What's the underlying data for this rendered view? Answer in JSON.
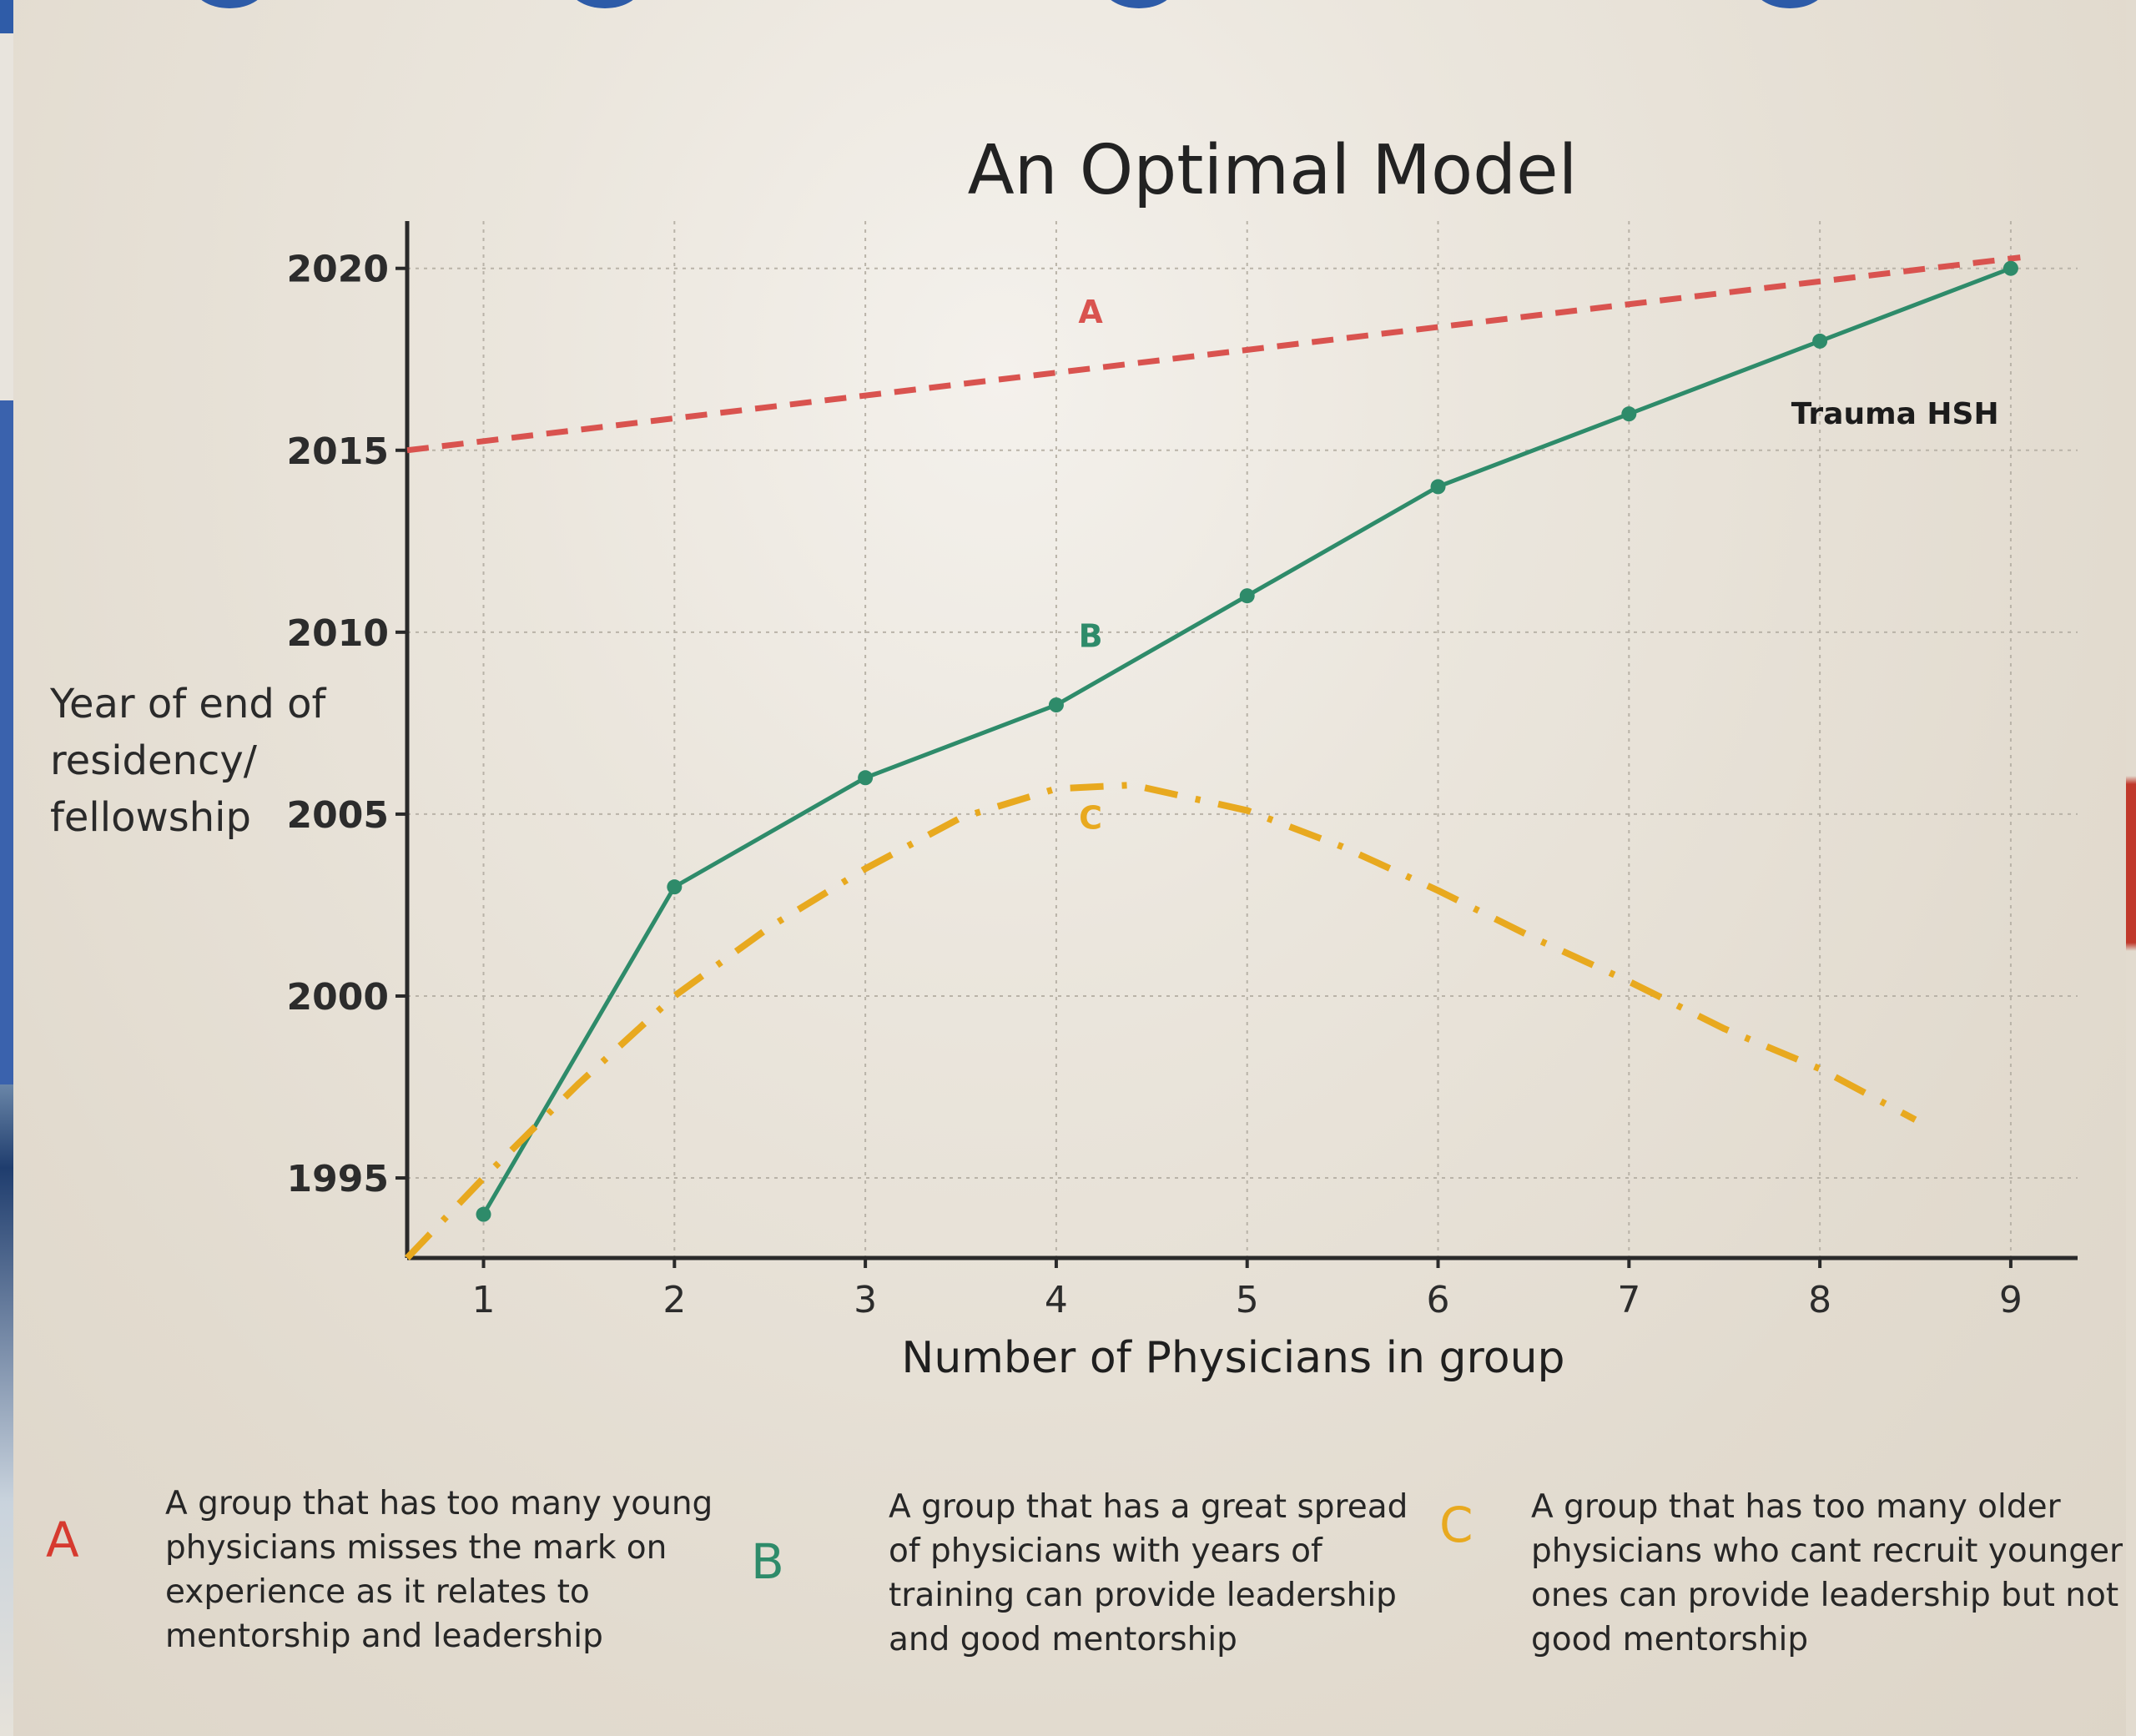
{
  "chart_data": {
    "type": "line",
    "title": "An Optimal Model",
    "xlabel": "Number of Physicians in group",
    "ylabel": [
      "Year of end of",
      "residency/",
      "fellowship"
    ],
    "x_ticks": [
      1,
      2,
      3,
      4,
      5,
      6,
      7,
      8,
      9
    ],
    "y_ticks": [
      1995,
      2000,
      2005,
      2010,
      2015,
      2020
    ],
    "xlim": [
      0.6,
      9.35
    ],
    "ylim": [
      1992.8,
      2021.3
    ],
    "grid": true,
    "series": [
      {
        "name": "A",
        "style": "dashed",
        "color": "#d9534f",
        "x": [
          0.6,
          9.05
        ],
        "y": [
          2015.0,
          2020.3
        ]
      },
      {
        "name": "B",
        "style": "solid-markers",
        "color": "#2e8b6a",
        "x": [
          1,
          2,
          3,
          4,
          5,
          6,
          7,
          8,
          9
        ],
        "y": [
          1994,
          2003,
          2006,
          2008,
          2011,
          2014,
          2016,
          2018,
          2020
        ]
      },
      {
        "name": "C",
        "style": "dash-dot",
        "color": "#e8a91f",
        "x": [
          0.6,
          1,
          1.5,
          2,
          2.5,
          3,
          3.5,
          4,
          4.4,
          5,
          5.5,
          6,
          6.5,
          7,
          7.5,
          8,
          8.5
        ],
        "y": [
          1992.8,
          1995.0,
          1997.6,
          2000.0,
          2001.9,
          2003.5,
          2004.9,
          2005.7,
          2005.8,
          2005.1,
          2004.1,
          2002.9,
          2001.6,
          2000.4,
          1999.1,
          1998.0,
          1996.6
        ]
      }
    ],
    "series_tags": [
      {
        "text": "A",
        "x": 4.18,
        "y": 2018.5
      },
      {
        "text": "B",
        "x": 4.18,
        "y": 2009.6
      },
      {
        "text": "C",
        "x": 4.18,
        "y": 2004.6
      }
    ],
    "annotation": {
      "text": "Trauma HSH",
      "x": 7.85,
      "y": 2016.0
    }
  },
  "legend": [
    {
      "letter": "A",
      "color": "#d63a2f",
      "lines": [
        "A group that has too many young",
        "physicians misses the mark on",
        "experience as it relates to",
        "mentorship and leadership"
      ]
    },
    {
      "letter": "B",
      "color": "#2e8b6a",
      "lines": [
        "A group that has a great spread",
        "of physicians with  years of",
        "training can provide leadership",
        "and good mentorship"
      ]
    },
    {
      "letter": "C",
      "color": "#e8a91f",
      "lines": [
        "A group that has too many older",
        "physicians who cant recruit younger",
        "ones can provide leadership but not",
        "good mentorship"
      ]
    }
  ]
}
